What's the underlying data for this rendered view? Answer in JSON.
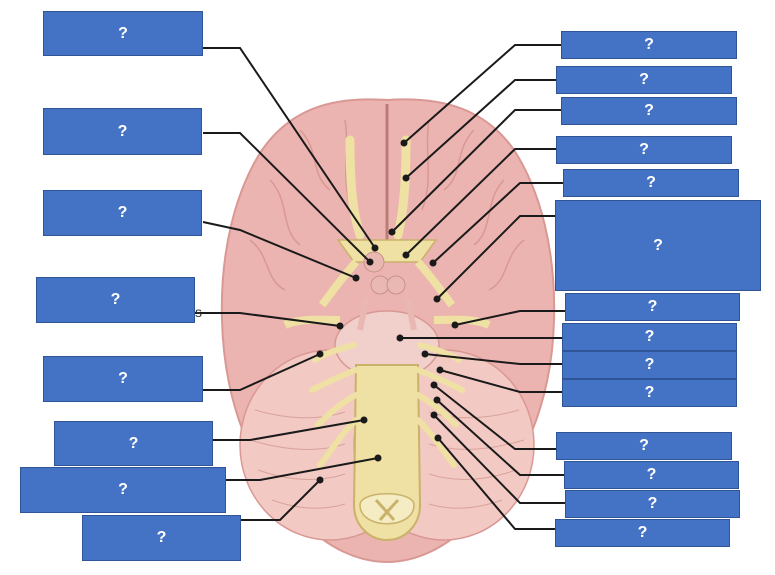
{
  "labels": {
    "left": [
      "?",
      "?",
      "?",
      "?",
      "?",
      "?",
      "?",
      "?"
    ],
    "right": [
      "?",
      "?",
      "?",
      "?",
      "?",
      "?",
      "?",
      "?",
      "?",
      "?",
      "?",
      "?",
      "?",
      "?"
    ]
  },
  "fragments": {
    "s": "s"
  },
  "colors": {
    "label_fill": "#4472c4",
    "brain": "#ecb4b0",
    "brain_dark": "#d99893",
    "cerebellum": "#f3c9c3",
    "nerve": "#efe0a3",
    "nerve_edge": "#c9b26a",
    "leader": "#1a1a1a"
  }
}
